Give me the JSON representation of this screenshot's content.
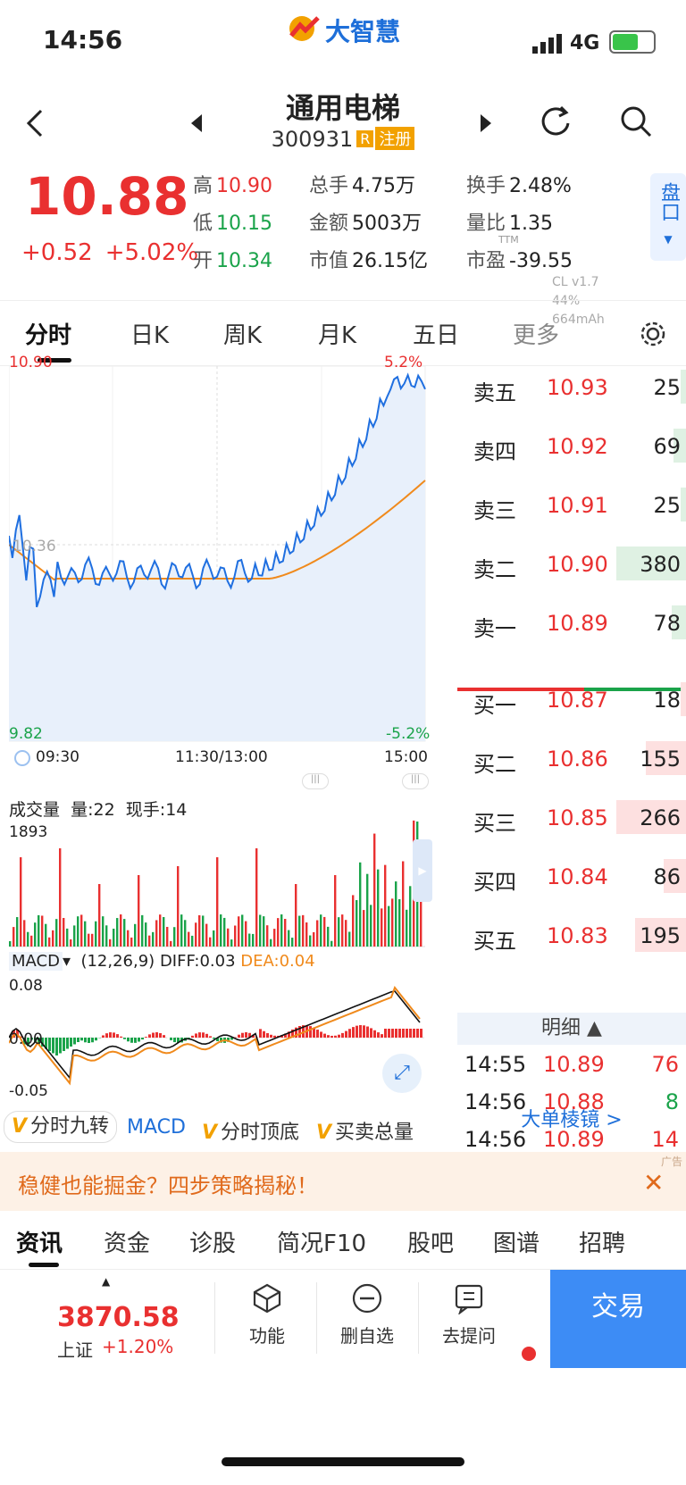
{
  "status": {
    "time": "14:56",
    "net": "4G",
    "logo_text": "大智慧"
  },
  "header": {
    "name": "通用电梯",
    "code": "300931",
    "badge_r": "R",
    "badge_reg": "注册"
  },
  "quote": {
    "price": "10.88",
    "change": "+0.52",
    "change_pct": "+5.02%",
    "high_label": "高",
    "high": "10.90",
    "low_label": "低",
    "low": "10.15",
    "open_label": "开",
    "open": "10.34",
    "vol_label": "总手",
    "vol": "4.75万",
    "amt_label": "金额",
    "amt": "5003万",
    "mcap_label": "市值",
    "mcap": "26.15亿",
    "turn_label": "换手",
    "turn": "2.48%",
    "vr_label": "量比",
    "vr": "1.35",
    "pe_label": "市盈",
    "pe": "-39.55",
    "pe_tag": "TTM"
  },
  "pankou_label": "盘口",
  "cl_info": {
    "line1": "CL v1.7",
    "line2": "44%",
    "line3": "664mAh"
  },
  "ktabs": [
    "分时",
    "日K",
    "周K",
    "月K",
    "五日",
    "更多"
  ],
  "chart_labels": {
    "price_high": "10.90",
    "price_low": "9.82",
    "pct_high": "5.2%",
    "pct_low": "-5.2%",
    "mid": "10.36",
    "t_start": "09:30",
    "t_mid": "11:30/13:00",
    "t_end": "15:00",
    "vol_title": "成交量",
    "vol_qty": "量:22",
    "vol_now": "现手:14",
    "vol_max": "1893",
    "macd_name": "MACD",
    "macd_params": "(12,26,9)",
    "macd_diff": "DIFF:0.03",
    "macd_dea": "DEA:0.04",
    "macd_top": "0.08",
    "macd_zero": "0.00",
    "macd_bot": "-0.05"
  },
  "orderbook": {
    "asks": [
      {
        "label": "卖五",
        "price": "10.93",
        "vol": "25",
        "w": 0.07
      },
      {
        "label": "卖四",
        "price": "10.92",
        "vol": "69",
        "w": 0.18
      },
      {
        "label": "卖三",
        "price": "10.91",
        "vol": "25",
        "w": 0.07
      },
      {
        "label": "卖二",
        "price": "10.90",
        "vol": "380",
        "w": 1.0
      },
      {
        "label": "卖一",
        "price": "10.89",
        "vol": "78",
        "w": 0.21
      }
    ],
    "bids": [
      {
        "label": "买一",
        "price": "10.87",
        "vol": "18",
        "w": 0.07
      },
      {
        "label": "买二",
        "price": "10.86",
        "vol": "155",
        "w": 0.58
      },
      {
        "label": "买三",
        "price": "10.85",
        "vol": "266",
        "w": 1.0
      },
      {
        "label": "买四",
        "price": "10.84",
        "vol": "86",
        "w": 0.32
      },
      {
        "label": "买五",
        "price": "10.83",
        "vol": "195",
        "w": 0.73
      }
    ],
    "detail_title": "明细",
    "details": [
      {
        "time": "14:55",
        "price": "10.89",
        "vol": "76",
        "dir": "red"
      },
      {
        "time": "14:56",
        "price": "10.88",
        "vol": "8",
        "dir": "green"
      },
      {
        "time": "14:56",
        "price": "10.89",
        "vol": "14",
        "dir": "red"
      }
    ],
    "big_order": "大单棱镜 >"
  },
  "indicators": [
    "分时九转",
    "MACD",
    "分时顶底",
    "买卖总量"
  ],
  "ad": {
    "text": "稳健也能掘金？四步策略揭秘！",
    "tag": "广告",
    "close": "✕"
  },
  "ntabs": [
    "资讯",
    "资金",
    "诊股",
    "简况F10",
    "股吧",
    "图谱",
    "招聘"
  ],
  "bottom": {
    "index_value": "3870.58",
    "index_name": "上证",
    "index_change": "+1.20%",
    "func": "功能",
    "del": "删自选",
    "ask": "去提问",
    "trade": "交易"
  },
  "colors": {
    "up": "#e93030",
    "down": "#1aa34a",
    "accent": "#3d8cf5",
    "price_line": "#1f6fe0",
    "avg_line": "#f08a1c"
  }
}
